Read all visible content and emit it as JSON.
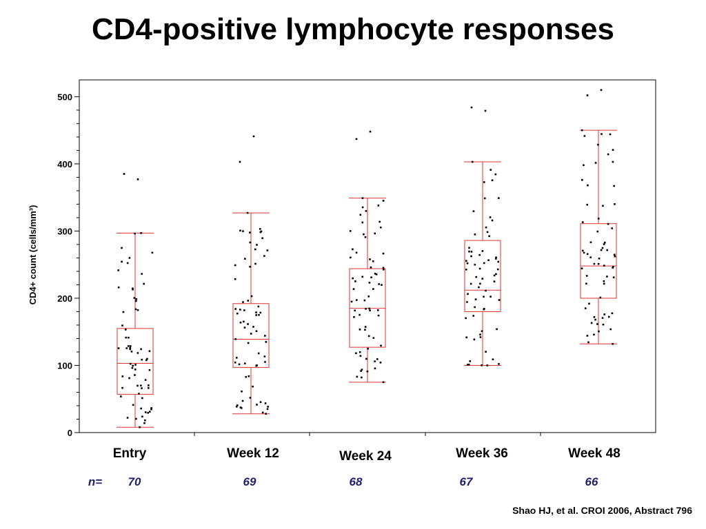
{
  "title": "CD4-positive lymphocyte responses",
  "citation": "Shao HJ, et al. CROI 2006, Abstract 796",
  "n_prefix": "n=",
  "colors": {
    "box": "#e03030",
    "point": "#000000",
    "axis": "#000000"
  },
  "chart_data": {
    "type": "box",
    "title": "",
    "xlabel": "",
    "ylabel": "CD4+ count  (cells/mm³)",
    "ylim": [
      0,
      525
    ],
    "yticks": [
      0,
      100,
      200,
      300,
      400,
      500
    ],
    "grid": false,
    "categories": [
      "Entry",
      "Week 12",
      "Week 24",
      "Week 36",
      "Week 48"
    ],
    "n": [
      "70",
      "69",
      "68",
      "67",
      "66"
    ],
    "boxes": [
      {
        "whisker_low": 8,
        "q1": 57,
        "median": 103,
        "q3": 155,
        "whisker_high": 297,
        "outliers": [
          385,
          377
        ]
      },
      {
        "whisker_low": 28,
        "q1": 97,
        "median": 139,
        "q3": 192,
        "whisker_high": 327,
        "outliers": [
          403,
          441
        ]
      },
      {
        "whisker_low": 75,
        "q1": 127,
        "median": 185,
        "q3": 244,
        "whisker_high": 349,
        "outliers": [
          437,
          448
        ]
      },
      {
        "whisker_low": 100,
        "q1": 180,
        "median": 212,
        "q3": 286,
        "whisker_high": 403,
        "outliers": [
          484,
          479
        ]
      },
      {
        "whisker_low": 132,
        "q1": 200,
        "median": 248,
        "q3": 311,
        "whisker_high": 450,
        "outliers": [
          502,
          510
        ]
      }
    ],
    "points_note": "individual patient values shown as jittered dots"
  }
}
